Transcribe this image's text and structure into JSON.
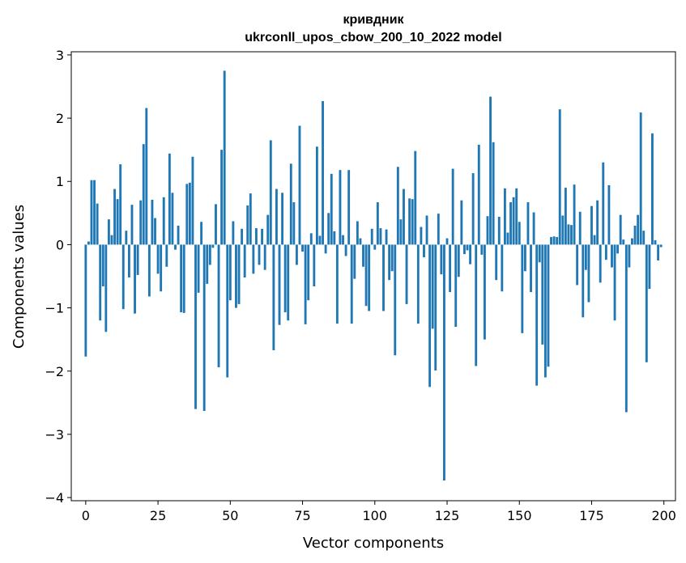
{
  "chart_data": {
    "type": "bar",
    "title": "кривдник",
    "subtitle": "ukrconll_upos_cbow_200_10_2022 model",
    "xlabel": "Vector components",
    "ylabel": "Components values",
    "xlim": [
      -5,
      204
    ],
    "ylim": [
      -4.05,
      3.05
    ],
    "x_ticks": [
      0,
      25,
      50,
      75,
      100,
      125,
      150,
      175,
      200
    ],
    "x_tick_labels": [
      "0",
      "25",
      "50",
      "75",
      "100",
      "125",
      "150",
      "175",
      "200"
    ],
    "y_ticks": [
      -4,
      -3,
      -2,
      -1,
      0,
      1,
      2,
      3
    ],
    "y_tick_labels": [
      "−4",
      "−3",
      "−2",
      "−1",
      "0",
      "1",
      "2",
      "3"
    ],
    "grid": false,
    "bar_color": "#1f77b4",
    "values": [
      -1.77,
      0.05,
      1.02,
      1.02,
      0.65,
      -1.2,
      -0.66,
      -1.38,
      0.4,
      0.15,
      0.88,
      0.72,
      1.27,
      -1.02,
      0.22,
      -0.52,
      0.63,
      -1.09,
      -0.48,
      0.7,
      1.59,
      2.16,
      -0.82,
      0.71,
      0.42,
      -0.46,
      -0.74,
      0.75,
      -0.35,
      1.44,
      0.82,
      -0.08,
      0.3,
      -1.07,
      -1.08,
      0.96,
      0.98,
      1.39,
      -2.6,
      -0.76,
      0.36,
      -2.63,
      -0.62,
      -0.32,
      -0.05,
      0.64,
      -1.94,
      1.5,
      2.75,
      -2.1,
      -0.88,
      0.37,
      -1.0,
      -0.94,
      0.25,
      -0.52,
      0.62,
      0.81,
      -0.46,
      0.26,
      -0.32,
      0.25,
      -0.4,
      0.47,
      1.65,
      -1.67,
      0.88,
      -1.27,
      0.82,
      -1.07,
      -1.2,
      1.28,
      0.67,
      -0.32,
      1.88,
      -0.11,
      -1.26,
      -0.88,
      0.18,
      -0.66,
      1.55,
      0.14,
      2.27,
      -0.14,
      0.5,
      1.12,
      0.21,
      -1.25,
      1.18,
      0.15,
      -0.18,
      1.18,
      -1.25,
      -0.54,
      0.37,
      0.1,
      -0.35,
      -0.97,
      -1.05,
      0.25,
      -0.08,
      0.67,
      0.26,
      -1.05,
      0.24,
      -0.56,
      -0.42,
      -1.75,
      1.23,
      0.4,
      0.88,
      -0.94,
      0.73,
      0.72,
      1.48,
      -1.25,
      0.28,
      -0.2,
      0.46,
      -2.25,
      -1.33,
      -1.99,
      0.49,
      -0.47,
      -3.73,
      0.1,
      -0.75,
      1.2,
      -1.3,
      -0.51,
      0.7,
      -0.15,
      -0.09,
      -0.31,
      1.13,
      -1.92,
      1.58,
      -0.16,
      -1.5,
      0.45,
      2.34,
      1.62,
      -0.56,
      0.44,
      -0.74,
      0.89,
      0.19,
      0.67,
      0.75,
      0.89,
      0.36,
      -1.4,
      -0.42,
      0.67,
      -0.75,
      0.51,
      -2.23,
      -0.28,
      -1.58,
      -2.1,
      -1.93,
      0.12,
      0.13,
      0.12,
      2.14,
      0.46,
      0.9,
      0.32,
      0.31,
      0.95,
      -0.64,
      0.52,
      -1.15,
      -0.4,
      -0.91,
      0.61,
      0.15,
      0.7,
      -0.6,
      1.3,
      -0.24,
      0.94,
      -0.36,
      -1.2,
      -0.14,
      0.47,
      0.08,
      -2.65,
      -0.36,
      0.1,
      0.3,
      0.47,
      2.09,
      0.22,
      -1.86,
      -0.7,
      1.76,
      0.07,
      -0.25,
      -0.04
    ]
  }
}
